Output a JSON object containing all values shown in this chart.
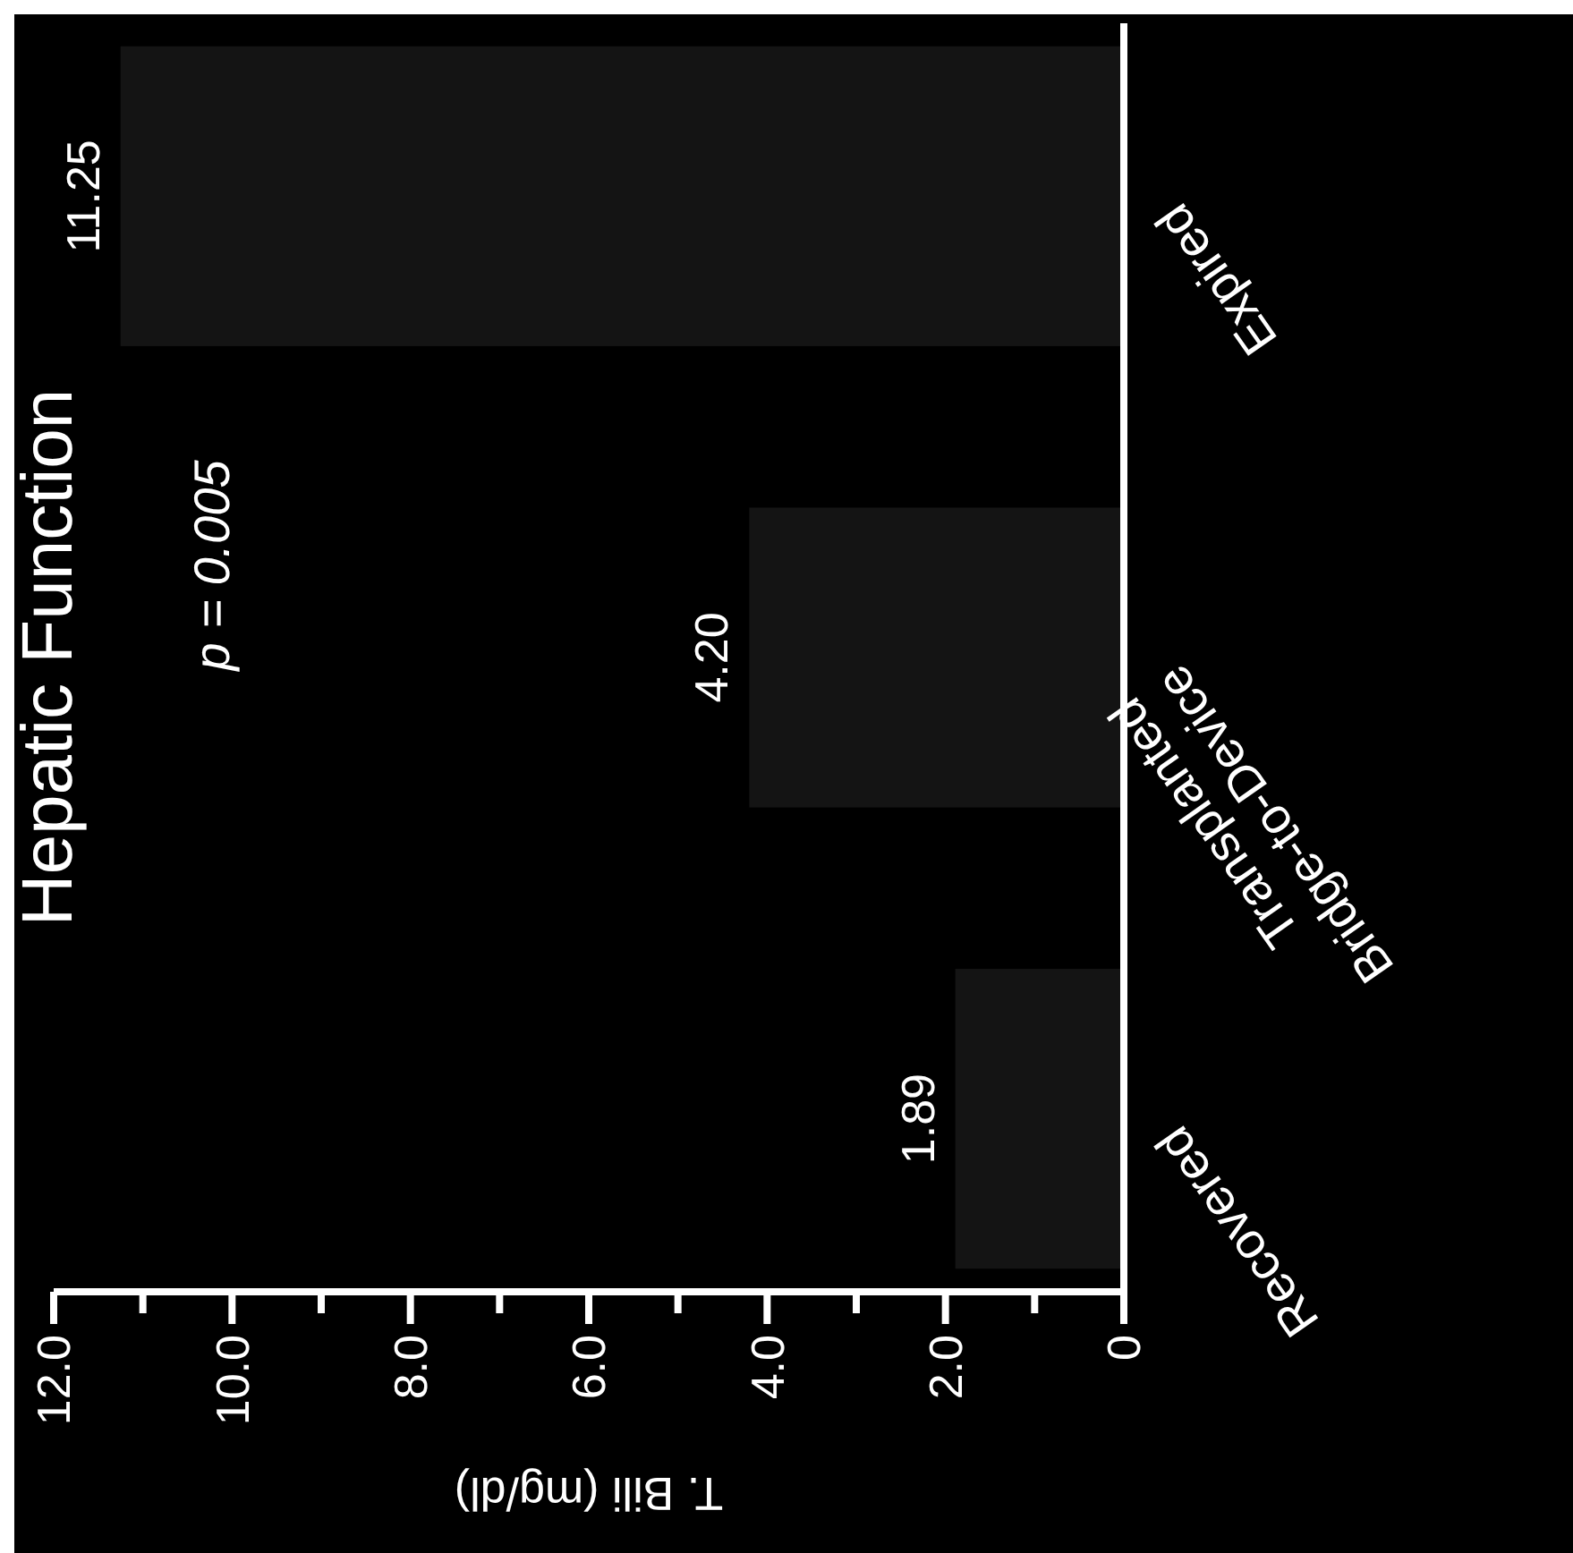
{
  "chart_data": {
    "type": "bar",
    "orientation": "horizontal",
    "title": "Hepatic Function",
    "xlabel": "T. Bili (mg/dl)",
    "categories": [
      "Expired",
      "Transplanted Bridge-to-Device",
      "Recovered"
    ],
    "values": [
      11.25,
      4.2,
      1.89
    ],
    "value_labels": [
      "11.25",
      "4.20",
      "1.89"
    ],
    "color": "#141414",
    "xlim": [
      12,
      0
    ],
    "xticks": [
      {
        "value": 12,
        "label": "12.0"
      },
      {
        "value": 11,
        "label": null
      },
      {
        "value": 10,
        "label": "10.0"
      },
      {
        "value": 9,
        "label": null
      },
      {
        "value": 8,
        "label": "8.0"
      },
      {
        "value": 7,
        "label": null
      },
      {
        "value": 6,
        "label": "6.0"
      },
      {
        "value": 5,
        "label": null
      },
      {
        "value": 4,
        "label": "4.0"
      },
      {
        "value": 3,
        "label": null
      },
      {
        "value": 2,
        "label": "2.0"
      },
      {
        "value": 1,
        "label": null
      },
      0
    ],
    "annotations": [
      "p = 0.005"
    ]
  }
}
